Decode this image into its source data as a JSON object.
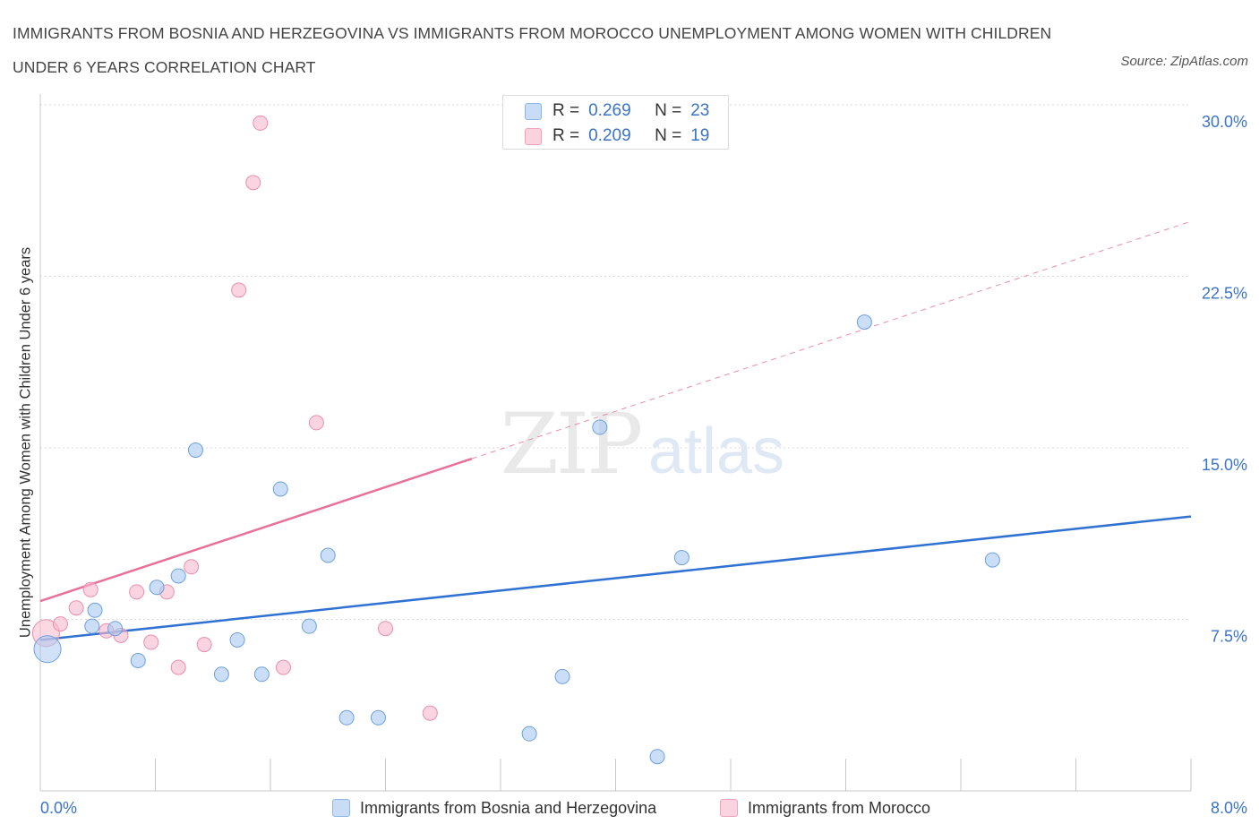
{
  "header": {
    "title": "IMMIGRANTS FROM BOSNIA AND HERZEGOVINA VS IMMIGRANTS FROM MOROCCO UNEMPLOYMENT AMONG WOMEN WITH CHILDREN UNDER 6 YEARS CORRELATION CHART",
    "source": "Source: ZipAtlas.com"
  },
  "watermark": {
    "zip": "ZIP",
    "atlas": "atlas"
  },
  "legend": {
    "r_label": "R =",
    "n_label": "N =",
    "rows": [
      {
        "r": "0.269",
        "n": "23",
        "color": "#a9c8f2"
      },
      {
        "r": "0.209",
        "n": "19",
        "color": "#f7b8cb"
      }
    ]
  },
  "chart_data": {
    "type": "scatter",
    "ylabel": "Unemployment Among Women with Children Under 6 years",
    "xlim": [
      0,
      8
    ],
    "ylim": [
      0,
      30
    ],
    "x_tick_labels": [
      "0.0%",
      "8.0%"
    ],
    "y_ticks": [
      7.5,
      15,
      22.5,
      30
    ],
    "y_tick_labels": [
      "7.5%",
      "15.0%",
      "22.5%",
      "30.0%"
    ],
    "grid": true,
    "series": [
      {
        "name": "Immigrants from Bosnia and Herzegovina",
        "color": "#a9c8f2",
        "edge_color": "#6fa0dc",
        "line_color": "#2f72d2",
        "trend": {
          "x": [
            0,
            8
          ],
          "y": [
            6.6,
            12.0
          ],
          "dashed_from": null
        },
        "points": [
          {
            "x": 0.05,
            "y": 6.2,
            "big": true
          },
          {
            "x": 0.38,
            "y": 7.9
          },
          {
            "x": 0.36,
            "y": 7.2
          },
          {
            "x": 0.52,
            "y": 7.1
          },
          {
            "x": 0.68,
            "y": 5.7
          },
          {
            "x": 0.81,
            "y": 8.9
          },
          {
            "x": 0.96,
            "y": 9.4
          },
          {
            "x": 1.08,
            "y": 14.9
          },
          {
            "x": 1.26,
            "y": 5.1
          },
          {
            "x": 1.37,
            "y": 6.6
          },
          {
            "x": 1.54,
            "y": 5.1
          },
          {
            "x": 1.67,
            "y": 13.2
          },
          {
            "x": 1.87,
            "y": 7.2
          },
          {
            "x": 2.0,
            "y": 10.3
          },
          {
            "x": 2.13,
            "y": 3.2
          },
          {
            "x": 2.35,
            "y": 3.2
          },
          {
            "x": 3.4,
            "y": 2.5
          },
          {
            "x": 3.63,
            "y": 5.0
          },
          {
            "x": 3.89,
            "y": 15.9
          },
          {
            "x": 4.29,
            "y": 1.5
          },
          {
            "x": 4.46,
            "y": 10.2
          },
          {
            "x": 5.73,
            "y": 20.5
          },
          {
            "x": 6.62,
            "y": 10.1
          }
        ]
      },
      {
        "name": "Immigrants from Morocco",
        "color": "#f7b8cb",
        "edge_color": "#ec8fac",
        "line_color": "#e8709a",
        "trend": {
          "x": [
            0,
            8
          ],
          "y": [
            8.3,
            24.9
          ],
          "dashed_from": 3.0
        },
        "points": [
          {
            "x": 0.04,
            "y": 6.9,
            "big": true
          },
          {
            "x": 0.14,
            "y": 7.3
          },
          {
            "x": 0.25,
            "y": 8.0
          },
          {
            "x": 0.35,
            "y": 8.8
          },
          {
            "x": 0.46,
            "y": 7.0
          },
          {
            "x": 0.56,
            "y": 6.8
          },
          {
            "x": 0.67,
            "y": 8.7
          },
          {
            "x": 0.77,
            "y": 6.5
          },
          {
            "x": 0.88,
            "y": 8.7
          },
          {
            "x": 0.96,
            "y": 5.4
          },
          {
            "x": 1.05,
            "y": 9.8
          },
          {
            "x": 1.14,
            "y": 6.4
          },
          {
            "x": 1.38,
            "y": 21.9
          },
          {
            "x": 1.48,
            "y": 26.6
          },
          {
            "x": 1.53,
            "y": 29.2
          },
          {
            "x": 1.69,
            "y": 5.4
          },
          {
            "x": 1.92,
            "y": 16.1
          },
          {
            "x": 2.4,
            "y": 7.1
          },
          {
            "x": 2.71,
            "y": 3.4
          }
        ]
      }
    ]
  }
}
